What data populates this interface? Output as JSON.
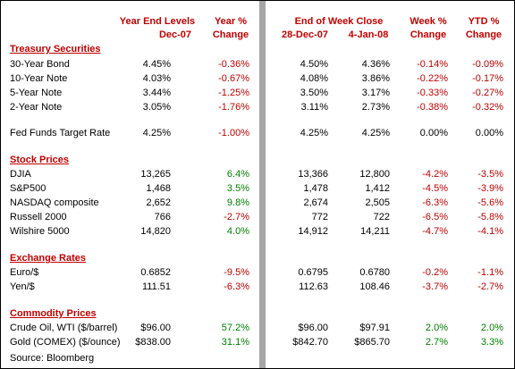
{
  "headers": {
    "year_end_levels": "Year End Levels",
    "year_end_date": "Dec-07",
    "year_pct": "Year %",
    "year_pct_sub": "Change",
    "end_of_week_close": "End of Week Close",
    "date1": "28-Dec-07",
    "date2": "4-Jan-08",
    "week_pct": "Week %",
    "week_pct_sub": "Change",
    "ytd_pct": "YTD %",
    "ytd_pct_sub": "Change"
  },
  "sections": {
    "treasury": "Treasury Securities",
    "stock": "Stock Prices",
    "exchange": "Exchange Rates",
    "commodity": "Commodity Prices"
  },
  "rows": {
    "bond30": {
      "label": "30-Year Bond",
      "level": "4.45%",
      "year": "-0.36%",
      "close1": "4.50%",
      "close2": "4.36%",
      "week": "-0.14%",
      "ytd": "-0.09%"
    },
    "note10": {
      "label": "10-Year Note",
      "level": "4.03%",
      "year": "-0.67%",
      "close1": "4.08%",
      "close2": "3.86%",
      "week": "-0.22%",
      "ytd": "-0.17%"
    },
    "note5": {
      "label": "5-Year Note",
      "level": "3.44%",
      "year": "-1.25%",
      "close1": "3.50%",
      "close2": "3.17%",
      "week": "-0.33%",
      "ytd": "-0.27%"
    },
    "note2": {
      "label": "2-Year Note",
      "level": "3.05%",
      "year": "-1.76%",
      "close1": "3.11%",
      "close2": "2.73%",
      "week": "-0.38%",
      "ytd": "-0.32%"
    },
    "fedfunds": {
      "label": "Fed Funds Target Rate",
      "level": "4.25%",
      "year": "-1.00%",
      "close1": "4.25%",
      "close2": "4.25%",
      "week": "0.00%",
      "ytd": "0.00%"
    },
    "djia": {
      "label": "DJIA",
      "level": "13,265",
      "year": "6.4%",
      "close1": "13,366",
      "close2": "12,800",
      "week": "-4.2%",
      "ytd": "-3.5%"
    },
    "sp500": {
      "label": "S&P500",
      "level": "1,468",
      "year": "3.5%",
      "close1": "1,478",
      "close2": "1,412",
      "week": "-4.5%",
      "ytd": "-3.9%"
    },
    "nasdaq": {
      "label": "NASDAQ composite",
      "level": "2,652",
      "year": "9.8%",
      "close1": "2,674",
      "close2": "2,505",
      "week": "-6.3%",
      "ytd": "-5.6%"
    },
    "russell": {
      "label": "Russell 2000",
      "level": "766",
      "year": "-2.7%",
      "close1": "772",
      "close2": "722",
      "week": "-6.5%",
      "ytd": "-5.8%"
    },
    "wilshire": {
      "label": "Wilshire 5000",
      "level": "14,820",
      "year": "4.0%",
      "close1": "14,912",
      "close2": "14,211",
      "week": "-4.7%",
      "ytd": "-4.1%"
    },
    "euro": {
      "label": "Euro/$",
      "level": "0.6852",
      "year": "-9.5%",
      "close1": "0.6795",
      "close2": "0.6780",
      "week": "-0.2%",
      "ytd": "-1.1%"
    },
    "yen": {
      "label": "Yen/$",
      "level": "111.51",
      "year": "-6.3%",
      "close1": "112.63",
      "close2": "108.46",
      "week": "-3.7%",
      "ytd": "-2.7%"
    },
    "oil": {
      "label": "Crude Oil, WTI ($/barrel)",
      "level": "$96.00",
      "year": "57.2%",
      "close1": "$96.00",
      "close2": "$97.91",
      "week": "2.0%",
      "ytd": "2.0%"
    },
    "gold": {
      "label": "Gold (COMEX) ($/ounce)",
      "level": "$838.00",
      "year": "31.1%",
      "close1": "$842.70",
      "close2": "$865.70",
      "week": "2.7%",
      "ytd": "3.3%"
    }
  },
  "source": "Source: Bloomberg",
  "colors": {
    "negative": "#c00000",
    "positive": "#008000",
    "header": "#c00000",
    "divider": "#a6a6a6"
  }
}
